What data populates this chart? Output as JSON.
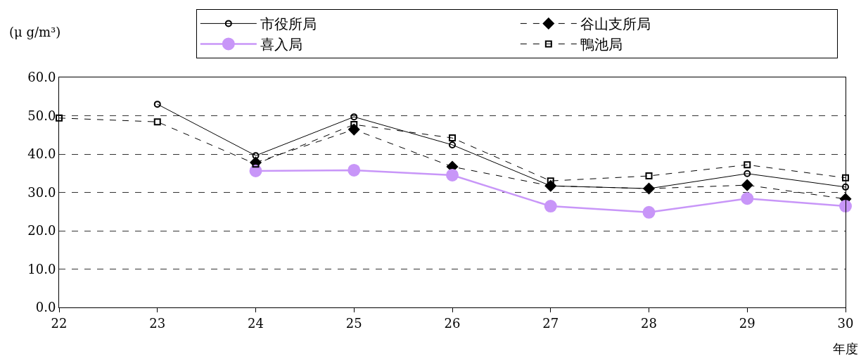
{
  "chart_data": {
    "type": "line",
    "ylabel": "(μ g/m³)",
    "xlabel": "年度",
    "x": [
      22,
      23,
      24,
      25,
      26,
      27,
      28,
      29,
      30
    ],
    "xlim": [
      22,
      30
    ],
    "xticks": [
      22,
      23,
      24,
      25,
      26,
      27,
      28,
      29,
      30
    ],
    "ylim": [
      0,
      60
    ],
    "yticks": [
      {
        "value": 0,
        "label": "0.0"
      },
      {
        "value": 10,
        "label": "10.0"
      },
      {
        "value": 20,
        "label": "20.0"
      },
      {
        "value": 30,
        "label": "30.0"
      },
      {
        "value": 40,
        "label": "40.0"
      },
      {
        "value": 50,
        "label": "50.0"
      },
      {
        "value": 60,
        "label": "60.0"
      }
    ],
    "grid": "y",
    "legend": "top right",
    "series": [
      {
        "name": "市役所局",
        "color": "#000000",
        "marker": "circle",
        "line_style": "solid",
        "values": [
          null,
          53.0,
          39.6,
          49.7,
          42.4,
          31.7,
          31.0,
          34.9,
          31.4
        ]
      },
      {
        "name": "谷山支所局",
        "color": "#000000",
        "marker": "diamond",
        "line_style": "dashed",
        "values": [
          null,
          null,
          37.8,
          46.4,
          36.7,
          31.7,
          31.0,
          31.9,
          28.3
        ]
      },
      {
        "name": "喜入局",
        "color": "#c896f8",
        "marker": "circle",
        "line_style": "solid",
        "values": [
          null,
          null,
          35.6,
          35.8,
          34.5,
          26.4,
          24.8,
          28.4,
          26.4
        ]
      },
      {
        "name": "鴨池局",
        "color": "#000000",
        "marker": "square",
        "line_style": "dashed",
        "values": [
          49.4,
          48.4,
          37.4,
          47.7,
          44.2,
          33.0,
          34.3,
          37.2,
          33.8
        ]
      }
    ]
  }
}
